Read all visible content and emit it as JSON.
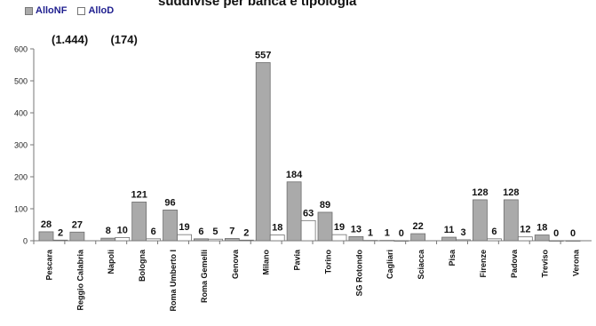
{
  "title": "suddivise per banca e tipologia",
  "legend": {
    "alloNF": "AlloNF",
    "alloD": "AlloD"
  },
  "totals": {
    "alloNF": "(1.444)",
    "alloD": "(174)"
  },
  "colors": {
    "alloNF": "#aaaaaa",
    "alloD": "#ffffff",
    "legend_text": "#1f1f8f"
  },
  "chart_data": {
    "type": "bar",
    "categories": [
      "Pescara",
      "Reggio Calabria",
      "Napoli",
      "Bologna",
      "Roma Umberto I",
      "Roma Gemelli",
      "Genova",
      "Milano",
      "Pavia",
      "Torino",
      "SG Rotondo",
      "Cagliari",
      "Sciacca",
      "Pisa",
      "Firenze",
      "Padova",
      "Treviso",
      "Verona"
    ],
    "series": [
      {
        "name": "AlloNF",
        "values": [
          28,
          27,
          8,
          121,
          96,
          6,
          7,
          557,
          184,
          89,
          13,
          1,
          22,
          11,
          128,
          128,
          18,
          0
        ]
      },
      {
        "name": "AlloD",
        "values": [
          2,
          null,
          10,
          6,
          19,
          5,
          2,
          18,
          63,
          19,
          1,
          0,
          null,
          3,
          6,
          12,
          0,
          null
        ]
      }
    ],
    "ylim": [
      0,
      600
    ],
    "yticks": [
      0,
      100,
      200,
      300,
      400,
      500,
      600
    ],
    "grid": false,
    "legend_position": "top-left"
  }
}
